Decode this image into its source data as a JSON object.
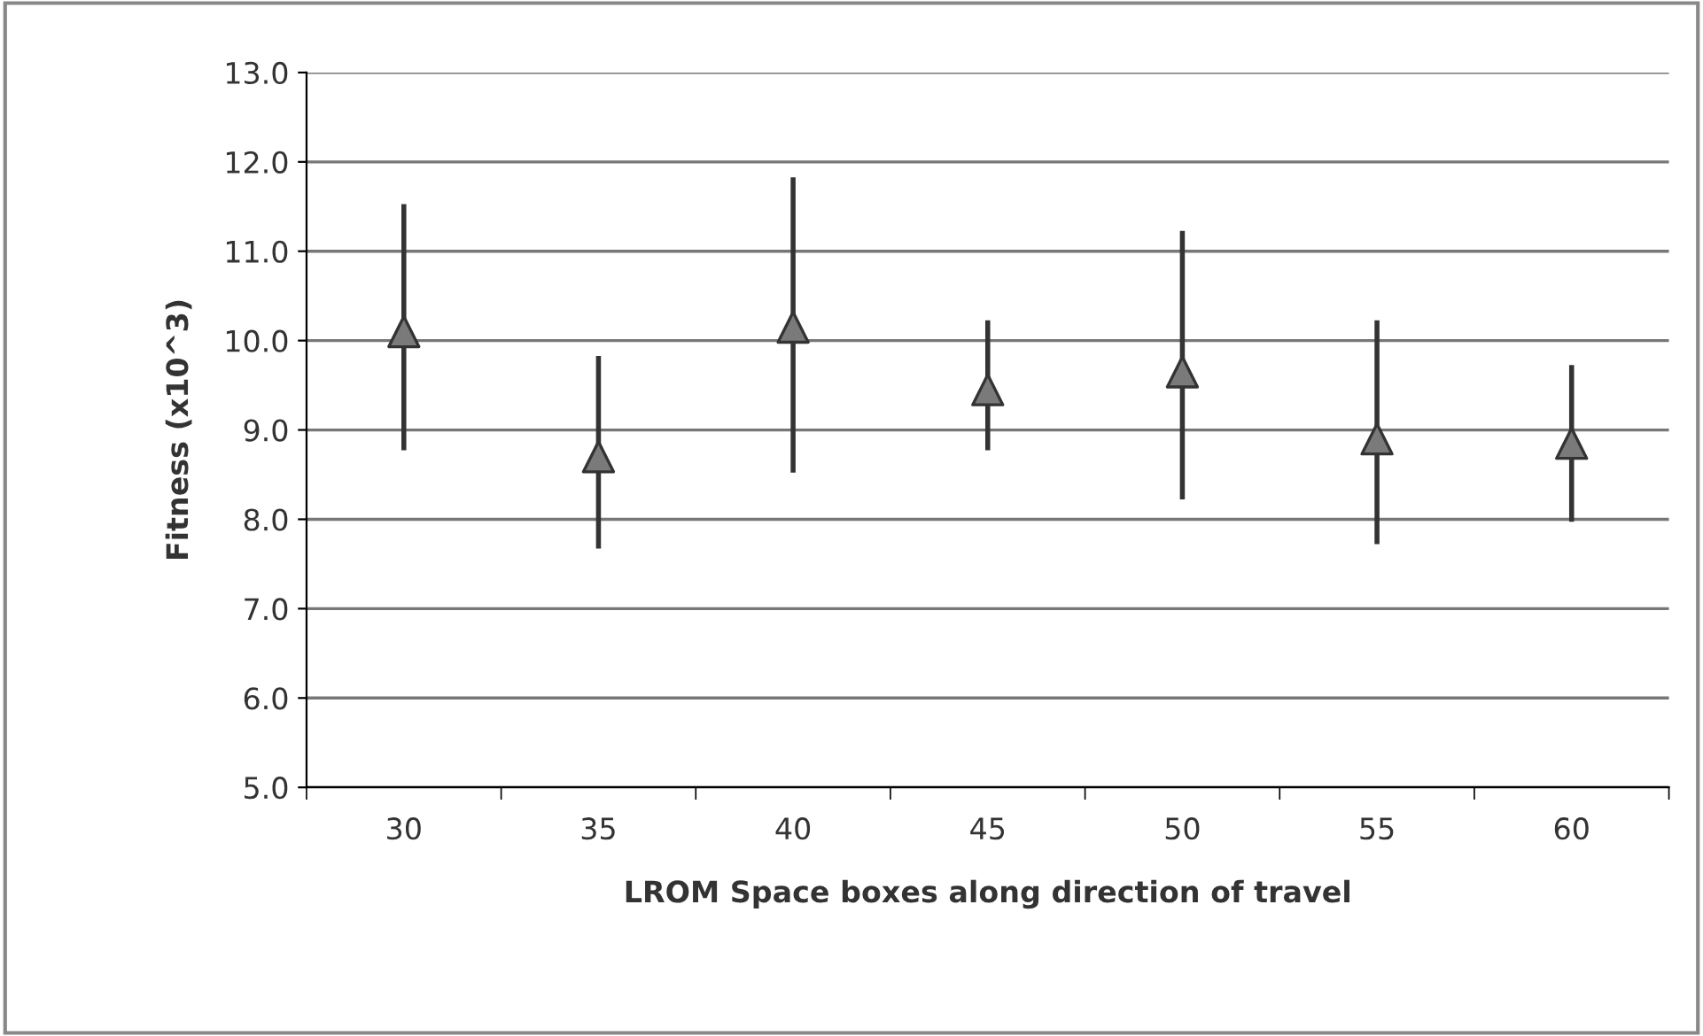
{
  "chart_data": {
    "type": "scatter",
    "xlabel": "LROM Space boxes along direction of travel",
    "ylabel": "Fitness (x10^3)",
    "categories": [
      "30",
      "35",
      "40",
      "45",
      "50",
      "55",
      "60"
    ],
    "series": [
      {
        "color": "#7a7a7a",
        "values": [
          10.1,
          8.7,
          10.15,
          9.45,
          9.65,
          8.9,
          8.85
        ],
        "errors": [
          [
            8.8,
            11.5
          ],
          [
            7.7,
            9.8
          ],
          [
            8.55,
            11.8
          ],
          [
            8.8,
            10.2
          ],
          [
            8.25,
            11.2
          ],
          [
            7.75,
            10.2
          ],
          [
            8.0,
            9.7
          ]
        ]
      }
    ],
    "ylim": [
      5,
      13
    ],
    "yticks": [
      {
        "value": 5,
        "label": "5.0"
      },
      {
        "value": 6,
        "label": "6.0"
      },
      {
        "value": 7,
        "label": "7.0"
      },
      {
        "value": 8,
        "label": "8.0"
      },
      {
        "value": 9,
        "label": "9.0"
      },
      {
        "value": 10,
        "label": "10.0"
      },
      {
        "value": 11,
        "label": "11.0"
      },
      {
        "value": 12,
        "label": "12.0"
      },
      {
        "value": 13,
        "label": "13.0"
      }
    ],
    "grid": "y",
    "marker": "triangle"
  }
}
